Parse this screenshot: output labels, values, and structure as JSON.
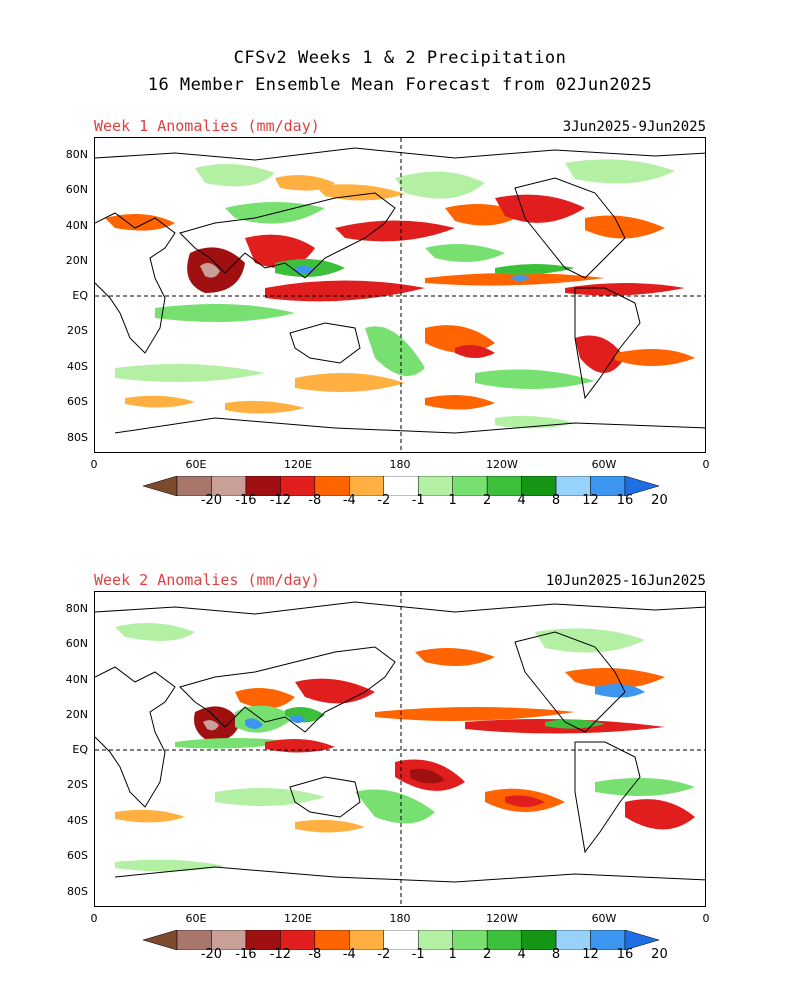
{
  "header": {
    "title_line1": "CFSv2 Weeks 1 & 2 Precipitation",
    "title_line2": "16 Member Ensemble Mean Forecast from 02Jun2025"
  },
  "panels": [
    {
      "label": "Week 1 Anomalies (mm/day)",
      "dates": "3Jun2025-9Jun2025"
    },
    {
      "label": "Week 2 Anomalies (mm/day)",
      "dates": "10Jun2025-16Jun2025"
    }
  ],
  "lat_ticks": [
    "80N",
    "60N",
    "40N",
    "20N",
    "EQ",
    "20S",
    "40S",
    "60S",
    "80S"
  ],
  "lon_ticks": [
    "0",
    "60E",
    "120E",
    "180",
    "120W",
    "60W",
    "0"
  ],
  "colorbar": {
    "labels": [
      "-20",
      "-16",
      "-12",
      "-8",
      "-4",
      "-2",
      "-1",
      "1",
      "2",
      "4",
      "8",
      "12",
      "16",
      "20"
    ],
    "colors": [
      "#7d4a2e",
      "#a8766a",
      "#c8a098",
      "#a01010",
      "#e01e1e",
      "#ff6400",
      "#ffb040",
      "#ffffff",
      "#b4f0a4",
      "#78e070",
      "#3cc03c",
      "#149614",
      "#96d2fa",
      "#3c96f0",
      "#1e6ee6"
    ]
  }
}
